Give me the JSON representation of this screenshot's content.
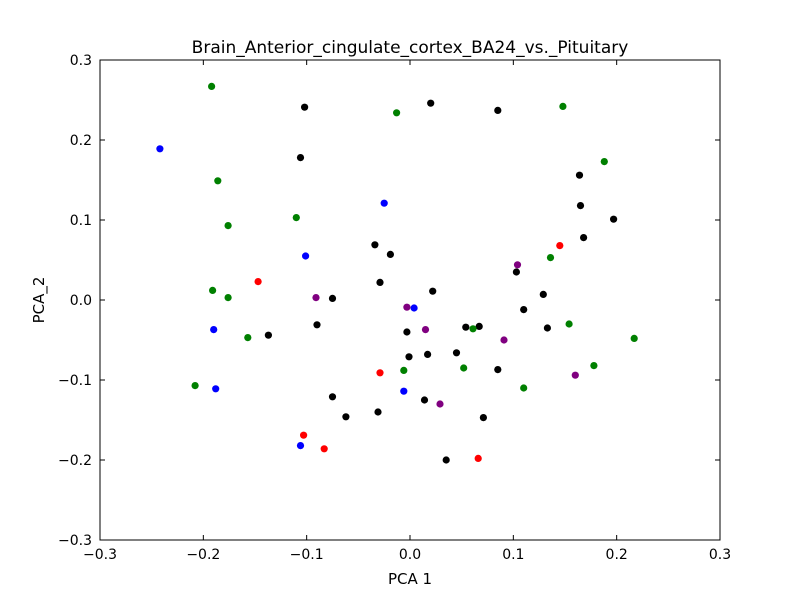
{
  "chart_data": {
    "type": "scatter",
    "title": "Brain_Anterior_cingulate_cortex_BA24_vs._Pituitary",
    "xlabel": "PCA 1",
    "ylabel": "PCA_2",
    "xlim": [
      -0.3,
      0.3
    ],
    "ylim": [
      -0.3,
      0.3
    ],
    "xticks": [
      -0.3,
      -0.2,
      -0.1,
      0.0,
      0.1,
      0.2,
      0.3
    ],
    "yticks": [
      -0.3,
      -0.2,
      -0.1,
      0.0,
      0.1,
      0.2,
      0.3
    ],
    "xtick_labels": [
      "−0.3",
      "−0.2",
      "−0.1",
      "0.0",
      "0.1",
      "0.2",
      "0.3"
    ],
    "ytick_labels": [
      "−0.3",
      "−0.2",
      "−0.1",
      "0.0",
      "0.1",
      "0.2",
      "0.3"
    ],
    "grid": false,
    "legend": "none",
    "series": [
      {
        "color": "#000000",
        "points": [
          [
            -0.102,
            0.241
          ],
          [
            0.02,
            0.246
          ],
          [
            0.085,
            0.237
          ],
          [
            -0.106,
            0.178
          ],
          [
            0.164,
            0.156
          ],
          [
            0.165,
            0.118
          ],
          [
            0.197,
            0.101
          ],
          [
            0.168,
            0.078
          ],
          [
            -0.034,
            0.069
          ],
          [
            -0.019,
            0.057
          ],
          [
            -0.029,
            0.022
          ],
          [
            0.022,
            0.011
          ],
          [
            0.103,
            0.035
          ],
          [
            0.129,
            0.007
          ],
          [
            -0.075,
            0.002
          ],
          [
            0.11,
            -0.012
          ],
          [
            -0.09,
            -0.031
          ],
          [
            0.054,
            -0.034
          ],
          [
            0.067,
            -0.033
          ],
          [
            0.133,
            -0.035
          ],
          [
            -0.003,
            -0.04
          ],
          [
            -0.137,
            -0.044
          ],
          [
            0.045,
            -0.066
          ],
          [
            0.017,
            -0.068
          ],
          [
            -0.001,
            -0.071
          ],
          [
            0.085,
            -0.087
          ],
          [
            -0.075,
            -0.121
          ],
          [
            0.014,
            -0.125
          ],
          [
            -0.031,
            -0.14
          ],
          [
            -0.062,
            -0.146
          ],
          [
            0.071,
            -0.147
          ],
          [
            0.035,
            -0.2
          ]
        ]
      },
      {
        "color": "#008000",
        "points": [
          [
            -0.192,
            0.267
          ],
          [
            -0.013,
            0.234
          ],
          [
            0.148,
            0.242
          ],
          [
            0.188,
            0.173
          ],
          [
            -0.186,
            0.149
          ],
          [
            -0.176,
            0.093
          ],
          [
            -0.11,
            0.103
          ],
          [
            0.136,
            0.053
          ],
          [
            -0.191,
            0.012
          ],
          [
            -0.176,
            0.003
          ],
          [
            0.154,
            -0.03
          ],
          [
            0.061,
            -0.036
          ],
          [
            -0.157,
            -0.047
          ],
          [
            0.217,
            -0.048
          ],
          [
            0.178,
            -0.082
          ],
          [
            0.052,
            -0.085
          ],
          [
            -0.006,
            -0.088
          ],
          [
            -0.208,
            -0.107
          ],
          [
            0.11,
            -0.11
          ]
        ]
      },
      {
        "color": "#0000ff",
        "points": [
          [
            -0.242,
            0.189
          ],
          [
            -0.025,
            0.121
          ],
          [
            -0.101,
            0.055
          ],
          [
            0.004,
            -0.01
          ],
          [
            -0.19,
            -0.037
          ],
          [
            -0.188,
            -0.111
          ],
          [
            -0.006,
            -0.114
          ],
          [
            -0.106,
            -0.182
          ]
        ]
      },
      {
        "color": "#ff0000",
        "points": [
          [
            0.145,
            0.068
          ],
          [
            -0.147,
            0.023
          ],
          [
            -0.029,
            -0.091
          ],
          [
            -0.103,
            -0.169
          ],
          [
            -0.083,
            -0.186
          ],
          [
            0.066,
            -0.198
          ]
        ]
      },
      {
        "color": "#800080",
        "points": [
          [
            0.104,
            0.044
          ],
          [
            -0.091,
            0.003
          ],
          [
            -0.003,
            -0.009
          ],
          [
            0.015,
            -0.037
          ],
          [
            0.091,
            -0.05
          ],
          [
            0.16,
            -0.094
          ],
          [
            0.029,
            -0.13
          ]
        ]
      }
    ]
  }
}
